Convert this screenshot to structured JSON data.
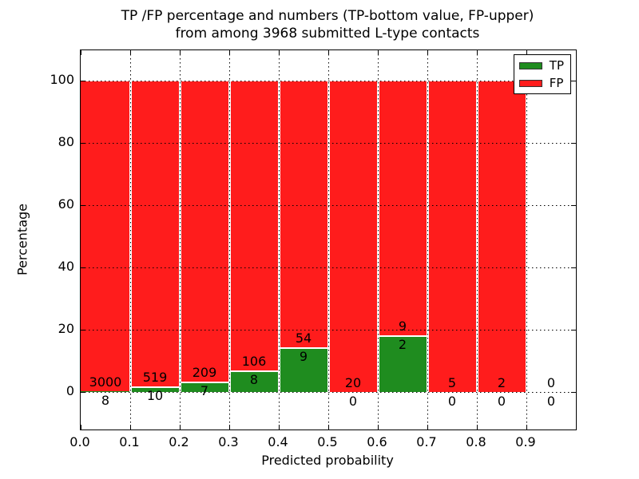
{
  "title": {
    "line1": "TP /FP percentage and numbers (TP-bottom value, FP-upper)",
    "line2": "from among 3968 submitted L-type contacts"
  },
  "legend": [
    {
      "label": "TP",
      "color": "#1f8c1f"
    },
    {
      "label": "FP",
      "color": "#ff1c1c"
    }
  ],
  "colors": {
    "tp": "#1f8c1f",
    "fp": "#ff1c1c",
    "grid": "#000000",
    "background": "#ffffff"
  },
  "chart_data": {
    "type": "bar",
    "stacked": true,
    "title": "TP /FP percentage and numbers (TP-bottom value, FP-upper) from among 3968 submitted L-type contacts",
    "xlabel": "Predicted probability",
    "ylabel": "Percentage",
    "total_contacts": 3968,
    "xlim": [
      0.0,
      1.0
    ],
    "ylim": [
      -12.8,
      110.3
    ],
    "x_tick_values": [
      0.0,
      0.1,
      0.2,
      0.3,
      0.4,
      0.5,
      0.6,
      0.7,
      0.8,
      0.9
    ],
    "x_tick_labels": [
      "0.0",
      "0.1",
      "0.2",
      "0.3",
      "0.4",
      "0.5",
      "0.6",
      "0.7",
      "0.8",
      "0.9"
    ],
    "y_tick_values": [
      0,
      20,
      40,
      60,
      80,
      100
    ],
    "y_tick_labels": [
      "0",
      "20",
      "40",
      "60",
      "80",
      "100"
    ],
    "grid": true,
    "legend_position": "upper right",
    "series_note": "bars are percentage stacks: TP bottom (green), FP upper (red); labels show raw counts, FP count above TP count",
    "bins": [
      {
        "range": [
          0.0,
          0.1
        ],
        "tp": 8,
        "fp": 3000,
        "tp_percent": 0.27
      },
      {
        "range": [
          0.1,
          0.2
        ],
        "tp": 10,
        "fp": 519,
        "tp_percent": 1.89
      },
      {
        "range": [
          0.2,
          0.3
        ],
        "tp": 7,
        "fp": 209,
        "tp_percent": 3.24
      },
      {
        "range": [
          0.3,
          0.4
        ],
        "tp": 8,
        "fp": 106,
        "tp_percent": 7.02
      },
      {
        "range": [
          0.4,
          0.5
        ],
        "tp": 9,
        "fp": 54,
        "tp_percent": 14.29
      },
      {
        "range": [
          0.5,
          0.6
        ],
        "tp": 0,
        "fp": 20,
        "tp_percent": 0.0
      },
      {
        "range": [
          0.6,
          0.7
        ],
        "tp": 2,
        "fp": 9,
        "tp_percent": 18.18
      },
      {
        "range": [
          0.7,
          0.8
        ],
        "tp": 0,
        "fp": 5,
        "tp_percent": 0.0
      },
      {
        "range": [
          0.8,
          0.9
        ],
        "tp": 0,
        "fp": 2,
        "tp_percent": 0.0
      },
      {
        "range": [
          0.9,
          1.0
        ],
        "tp": 0,
        "fp": 0,
        "tp_percent": 0.0
      }
    ]
  }
}
